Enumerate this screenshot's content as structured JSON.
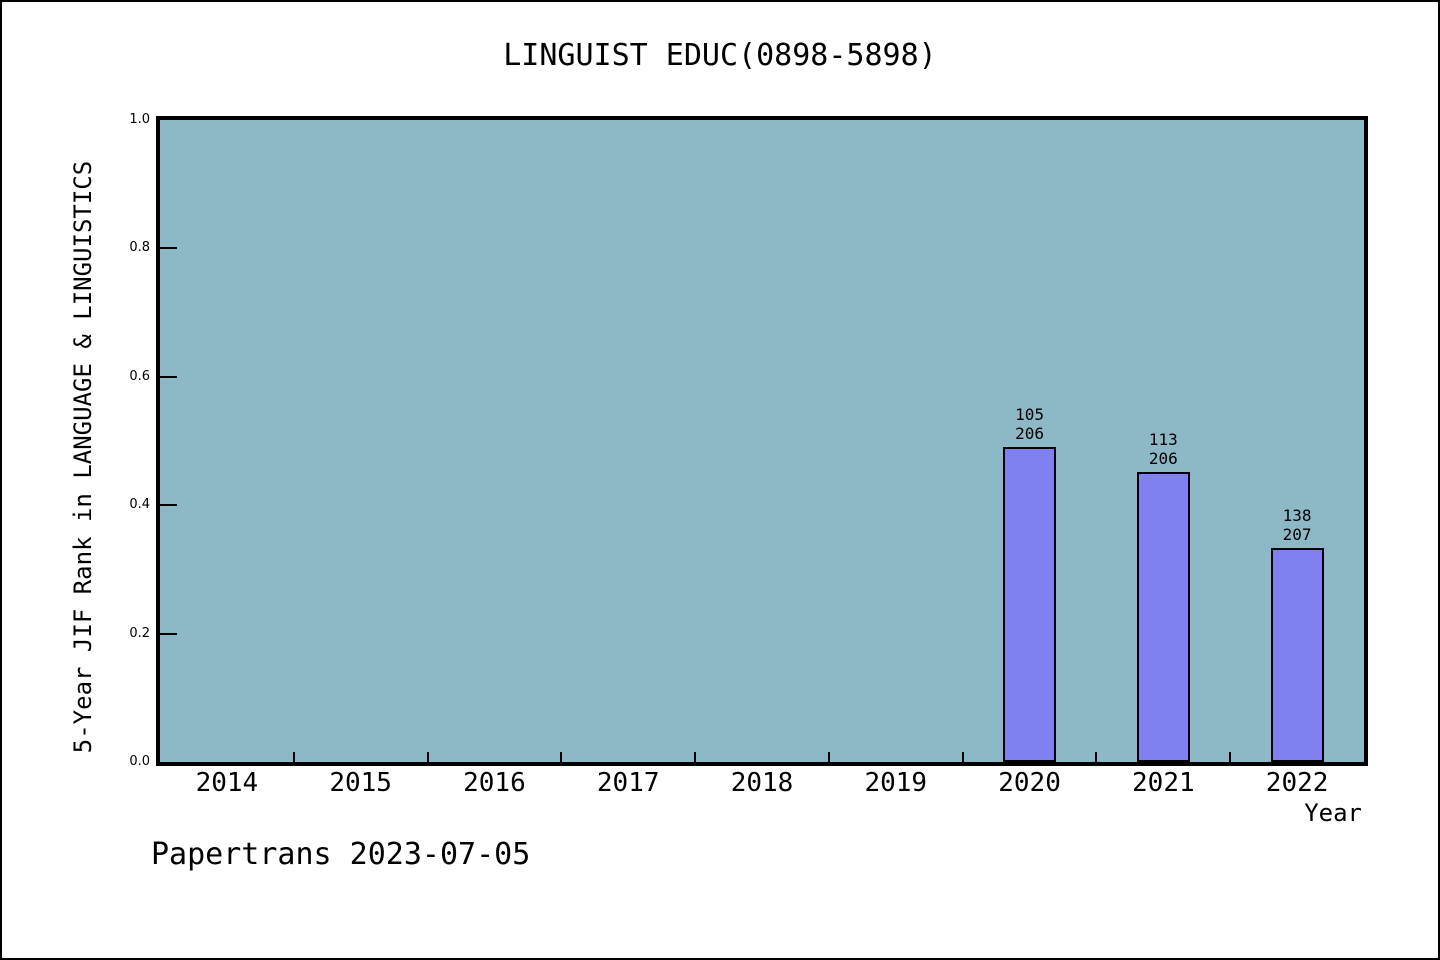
{
  "footer": {
    "text": "Papertrans 2023-07-05"
  },
  "colors": {
    "plot_background": "#8db8c6",
    "bar_fill": "#8080f0",
    "bar_border": "#000000",
    "text": "#000000",
    "page_background": "#ffffff",
    "frame_border": "#000000"
  },
  "chart_data": {
    "type": "bar",
    "title": "LINGUIST EDUC(0898-5898)",
    "xlabel": "Year",
    "ylabel": "5-Year JIF Rank in LANGUAGE & LINGUISTICS",
    "categories": [
      "2014",
      "2015",
      "2016",
      "2017",
      "2018",
      "2019",
      "2020",
      "2021",
      "2022"
    ],
    "values": [
      null,
      null,
      null,
      null,
      null,
      null,
      0.4903,
      0.4515,
      0.3333
    ],
    "bars": [
      {
        "category": "2020",
        "rank": 105,
        "total": 206,
        "value": 0.4903,
        "label_top": "105",
        "label_bottom": "206"
      },
      {
        "category": "2021",
        "rank": 113,
        "total": 206,
        "value": 0.4515,
        "label_top": "113",
        "label_bottom": "206"
      },
      {
        "category": "2022",
        "rank": 138,
        "total": 207,
        "value": 0.3333,
        "label_top": "138",
        "label_bottom": "207"
      }
    ],
    "ylim": [
      0.0,
      1.0
    ],
    "yticks": [
      "0.0",
      "0.2",
      "0.4",
      "0.6",
      "0.8",
      "1.0"
    ],
    "grid": false,
    "legend": false
  }
}
